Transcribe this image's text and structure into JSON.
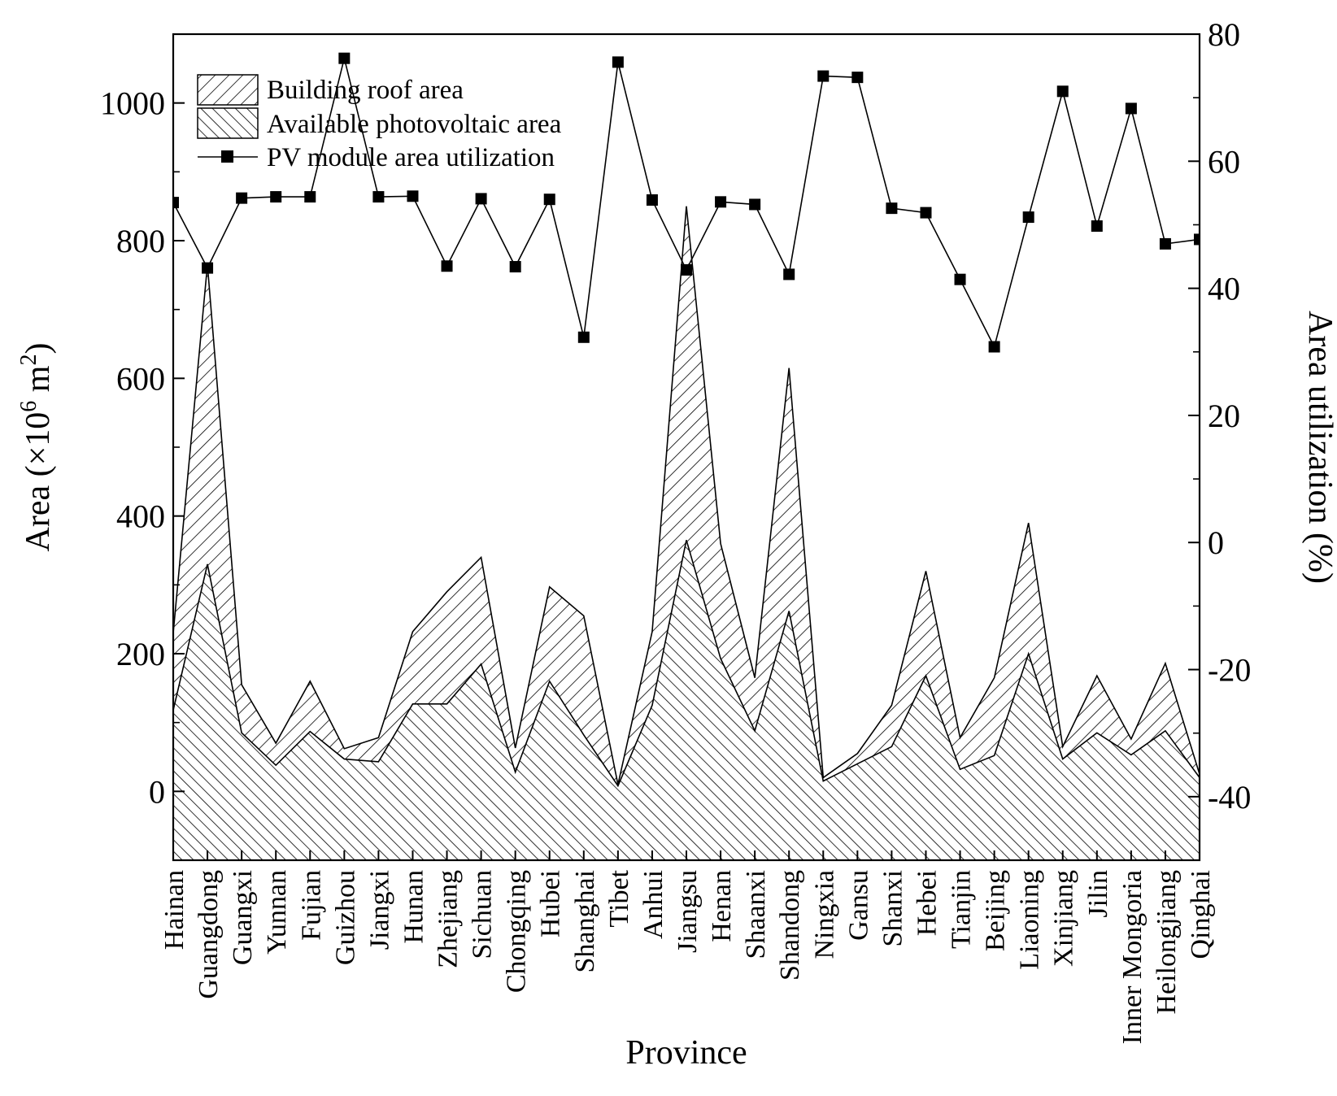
{
  "chart_data": {
    "type": "area",
    "title": "",
    "xlabel": "Province",
    "ylabel_left": "Area (×10",
    "ylabel_left_sup1": "6",
    "ylabel_left_mid": " m",
    "ylabel_left_sup2": "2",
    "ylabel_left_end": ")",
    "ylabel_right": "Area utilization (%)",
    "ylim_left": [
      -100,
      1100
    ],
    "yticks_left": [
      0,
      200,
      400,
      600,
      800,
      1000
    ],
    "ylim_right": [
      -50,
      80
    ],
    "yticks_right": [
      -40,
      -20,
      0,
      20,
      40,
      60,
      80
    ],
    "categories": [
      "Hainan",
      "Guangdong",
      "Guangxi",
      "Yunnan",
      "Fujian",
      "Guizhou",
      "Jiangxi",
      "Hunan",
      "Zhejiang",
      "Sichuan",
      "Chongqing",
      "Hubei",
      "Shanghai",
      "Tibet",
      "Anhui",
      "Jiangsu",
      "Henan",
      "Shaanxi",
      "Shandong",
      "Ningxia",
      "Gansu",
      "Shanxi",
      "Hebei",
      "Tianjin",
      "Beijing",
      "Liaoning",
      "Xinjiang",
      "Jilin",
      "Inner Mongoria",
      "Heilongjiang",
      "Qinghai"
    ],
    "series": [
      {
        "name": "Building roof area",
        "axis": "left",
        "type": "area",
        "pattern": "hatch-forward",
        "values": [
          230,
          765,
          155,
          70,
          160,
          62,
          78,
          232,
          290,
          340,
          63,
          297,
          255,
          10,
          232,
          850,
          360,
          165,
          615,
          20,
          55,
          125,
          320,
          78,
          165,
          390,
          65,
          168,
          76,
          186,
          25
        ]
      },
      {
        "name": "Available photovoltaic area",
        "axis": "left",
        "type": "area",
        "pattern": "hatch-backward",
        "values": [
          118,
          330,
          85,
          38,
          87,
          47,
          43,
          127,
          127,
          185,
          28,
          160,
          82,
          8,
          125,
          365,
          193,
          88,
          262,
          15,
          40,
          65,
          168,
          32,
          52,
          200,
          47,
          85,
          53,
          88,
          20
        ]
      },
      {
        "name": "PV module area utilization",
        "axis": "right",
        "type": "line",
        "marker": "square",
        "values": [
          53.5,
          43.2,
          54.2,
          54.4,
          54.4,
          76.2,
          54.4,
          54.5,
          43.5,
          54.1,
          43.4,
          54.0,
          32.3,
          75.6,
          53.9,
          42.9,
          53.6,
          53.2,
          42.2,
          73.4,
          73.2,
          52.6,
          51.9,
          41.4,
          30.8,
          51.2,
          71.0,
          49.8,
          68.3,
          47.0,
          47.7
        ]
      }
    ],
    "legend_position": "top-left",
    "grid": false
  }
}
